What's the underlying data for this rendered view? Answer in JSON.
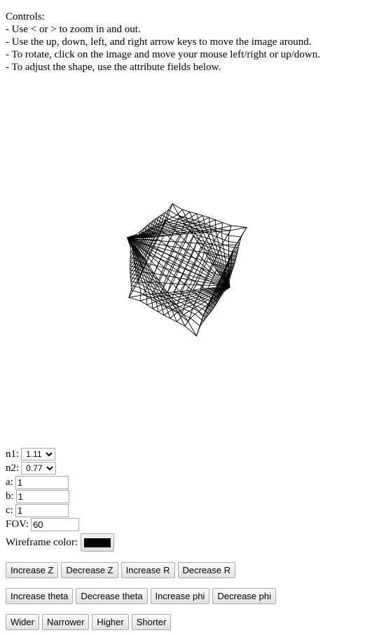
{
  "instructions": {
    "lines": [
      "Controls:",
      "- Use < or > to zoom in and out.",
      "- Use the up, down, left, and right arrow keys to move the image around.",
      "- To rotate, click on the image and move your mouse left/right or up/down.",
      "- To adjust the shape, use the attribute fields below."
    ]
  },
  "form": {
    "n1": {
      "label": "n1:",
      "value": "1.11"
    },
    "n2": {
      "label": "n2:",
      "value": "0.77"
    },
    "a": {
      "label": "a:",
      "value": "1"
    },
    "b": {
      "label": "b:",
      "value": "1"
    },
    "c": {
      "label": "c:",
      "value": "1"
    },
    "fov": {
      "label": "FOV:",
      "value": "60"
    },
    "wireframe": {
      "label": "Wireframe color:",
      "color": "#000000"
    }
  },
  "buttons": {
    "row1": [
      "Increase Z",
      "Decrease Z",
      "Increase R",
      "Decrease R"
    ],
    "row2": [
      "Increase theta",
      "Decrease theta",
      "Increase phi",
      "Decrease phi"
    ],
    "row3": [
      "Wider",
      "Narrower",
      "Higher",
      "Shorter"
    ]
  }
}
